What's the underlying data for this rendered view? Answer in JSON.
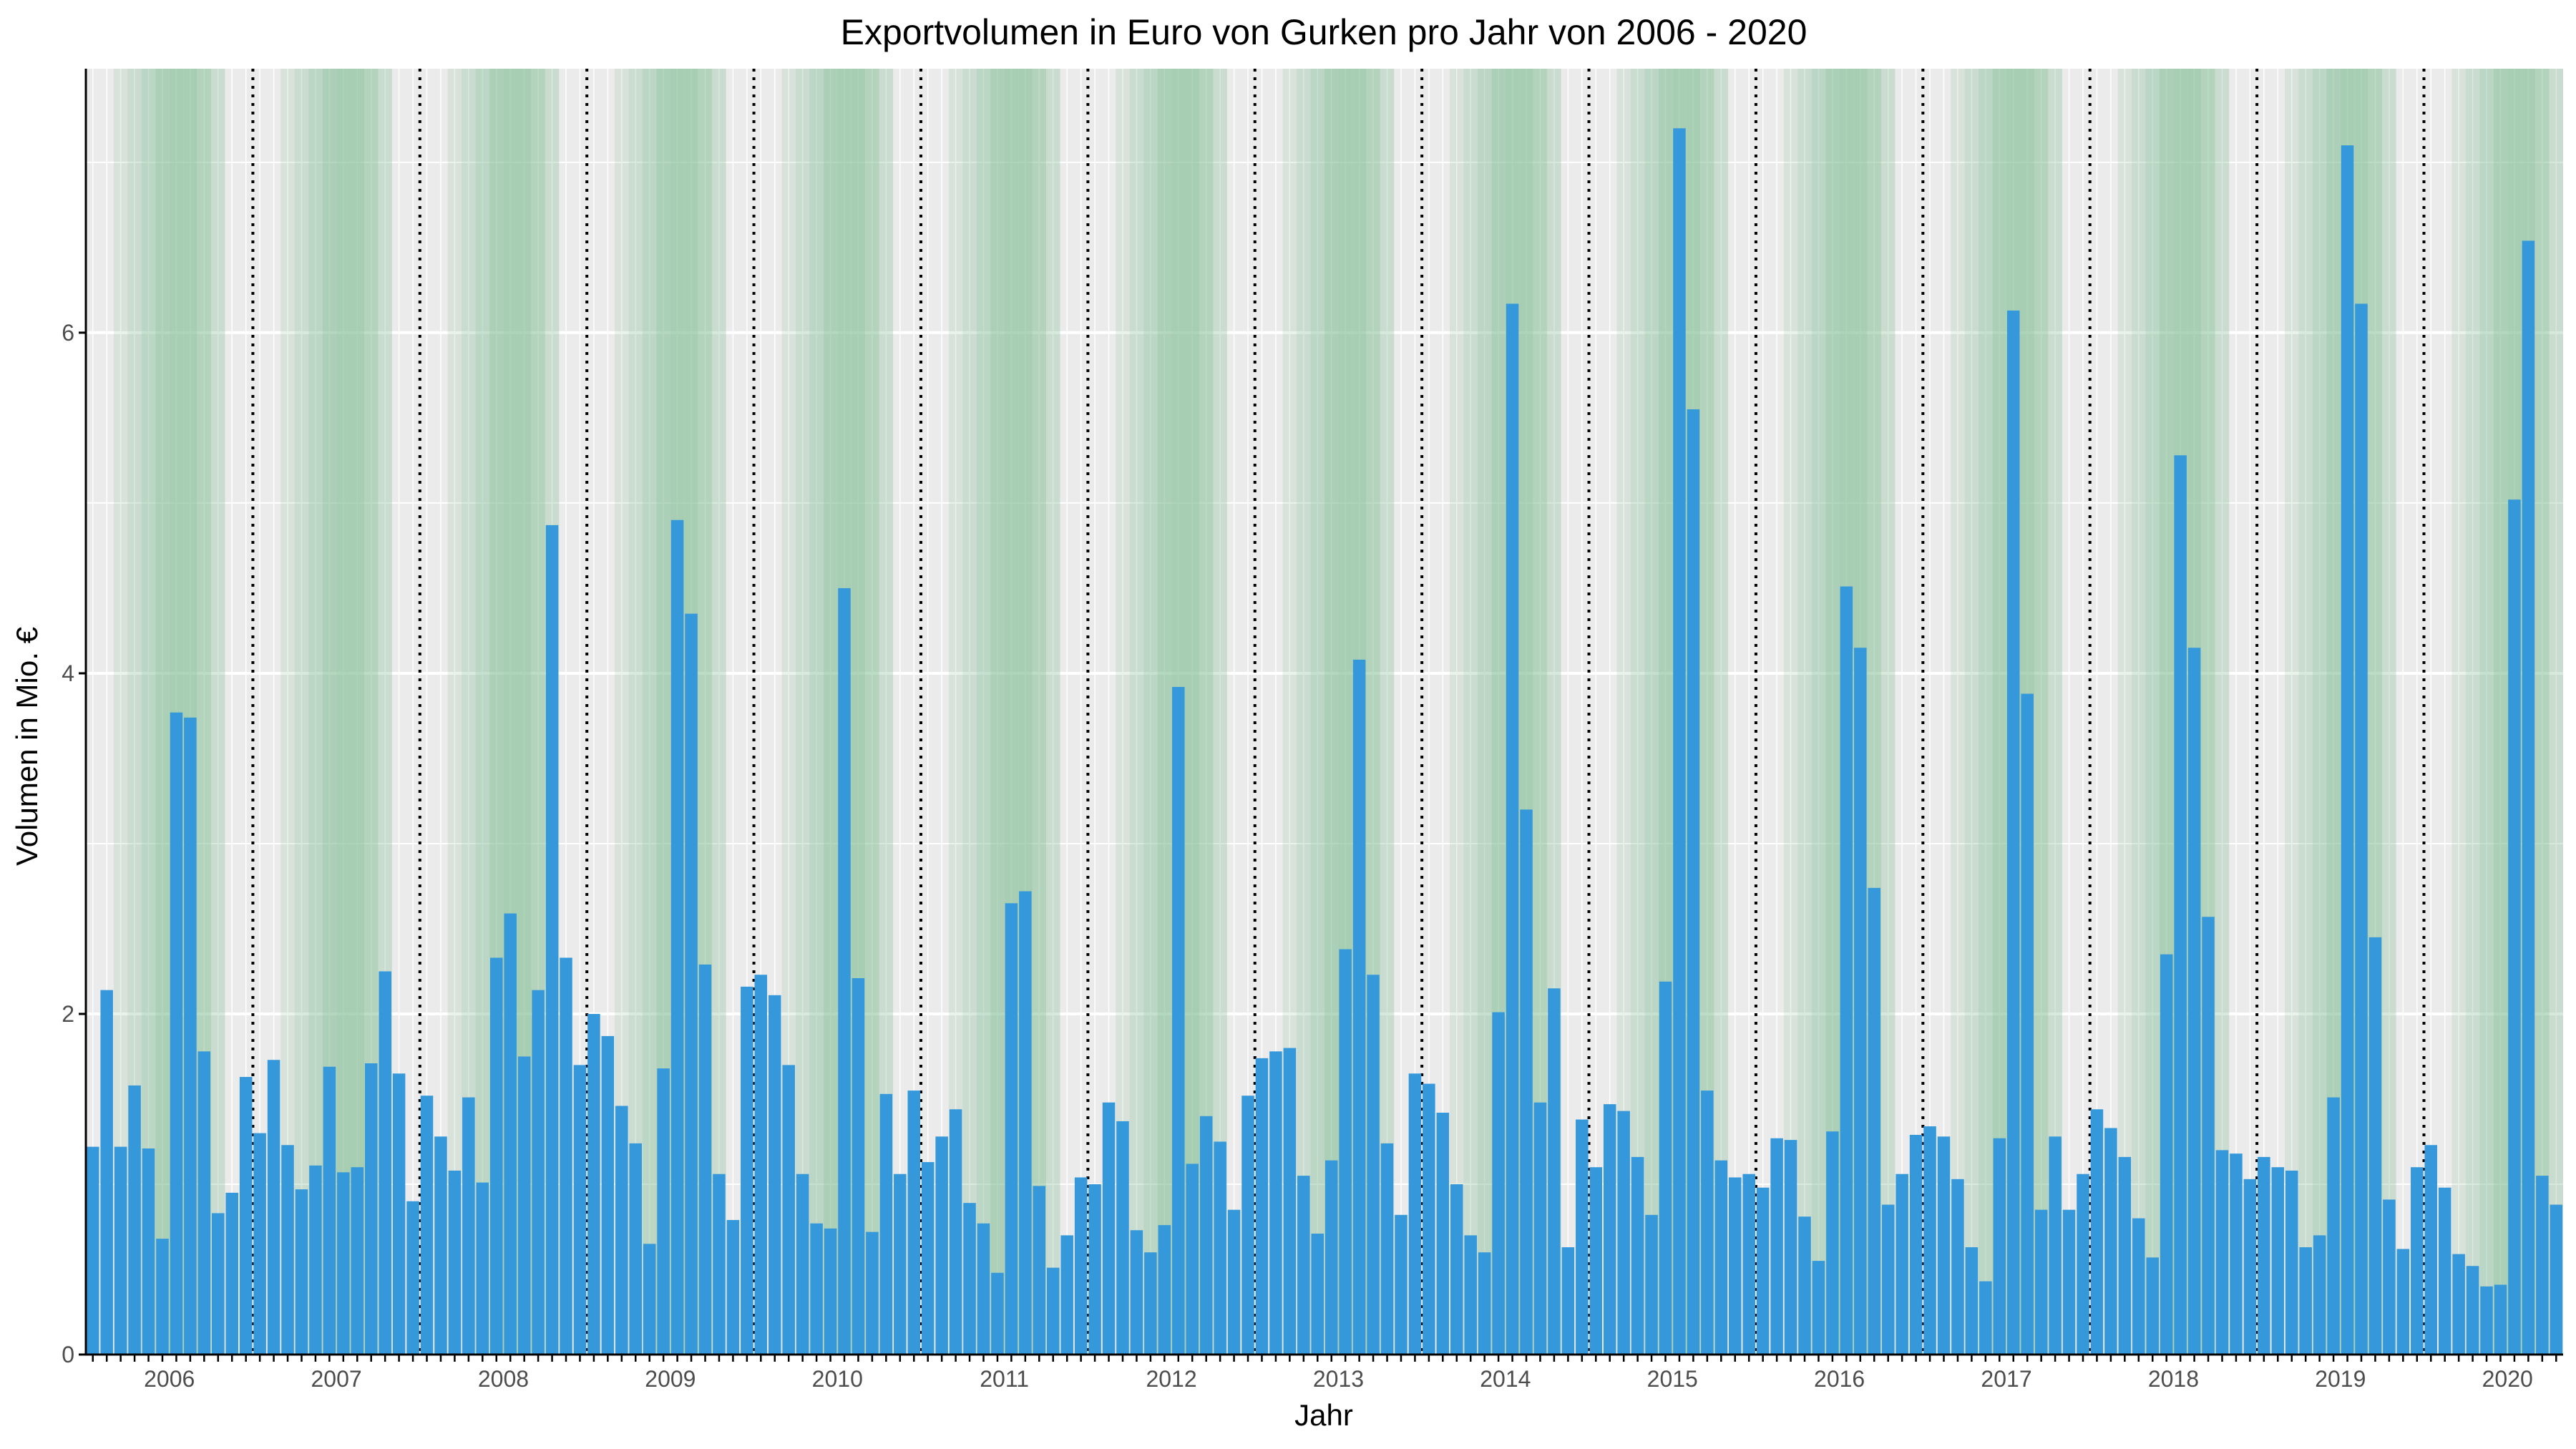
{
  "colors": {
    "bar": "#3498db",
    "season_band": "#86bf98",
    "panel_background": "#ebebeb",
    "grid_major": "#ffffff",
    "year_divider": "#000000",
    "axis_line": "#000000"
  },
  "chart_data": {
    "type": "bar",
    "title": "Exportvolumen in Euro von Gurken pro Jahr von 2006 - 2020",
    "xlabel": "Jahr",
    "ylabel": "Volumen in Mio. €",
    "ylim": [
      0,
      7.55
    ],
    "y_ticks": [
      "0",
      "2",
      "4",
      "6"
    ],
    "x_tick_labels": [
      "2006",
      "2007",
      "2008",
      "2009",
      "2010",
      "2011",
      "2012",
      "2013",
      "2014",
      "2015",
      "2016",
      "2017",
      "2018",
      "2019",
      "2020"
    ],
    "start": "2006-01",
    "frequency": "monthly",
    "grid": true,
    "legend": "none",
    "annotations": "dotted vertical line between December and January of each year; green shading over the months March to October",
    "series": [
      {
        "values": [
          1.22,
          2.14,
          1.22,
          1.58,
          1.21,
          0.68,
          3.77,
          3.74,
          1.78,
          0.83,
          0.95,
          1.63,
          1.3,
          1.73,
          1.23,
          0.97,
          1.11,
          1.69,
          1.07,
          1.1,
          1.71,
          2.25,
          1.65,
          0.9,
          1.52,
          1.28,
          1.08,
          1.51,
          1.01,
          2.33,
          2.59,
          1.75,
          2.14,
          4.87,
          2.33,
          1.7,
          2.0,
          1.87,
          1.46,
          1.24,
          0.65,
          1.68,
          4.9,
          4.35,
          2.29,
          1.06,
          0.79,
          2.16,
          2.23,
          2.11,
          1.7,
          1.06,
          0.77,
          0.74,
          4.5,
          2.21,
          0.72,
          1.53,
          1.06,
          1.55,
          1.13,
          1.28,
          1.44,
          0.89,
          0.77,
          0.48,
          2.65,
          2.72,
          0.99,
          0.51,
          0.7,
          1.04,
          1.0,
          1.48,
          1.37,
          0.73,
          0.6,
          0.76,
          3.92,
          1.12,
          1.4,
          1.25,
          0.85,
          1.52,
          1.74,
          1.78,
          1.8,
          1.05,
          0.71,
          1.14,
          2.38,
          4.08,
          2.23,
          1.24,
          0.82,
          1.65,
          1.59,
          1.42,
          1.0,
          0.7,
          0.6,
          2.01,
          6.17,
          3.2,
          1.48,
          2.15,
          0.63,
          1.38,
          1.1,
          1.47,
          1.43,
          1.16,
          0.82,
          2.19,
          7.2,
          5.55,
          1.55,
          1.14,
          1.04,
          1.06,
          0.98,
          1.27,
          1.26,
          0.81,
          0.55,
          1.31,
          4.51,
          4.15,
          2.74,
          0.88,
          1.06,
          1.29,
          1.34,
          1.28,
          1.03,
          0.63,
          0.43,
          1.27,
          6.13,
          3.88,
          0.85,
          1.28,
          0.85,
          1.06,
          1.44,
          1.33,
          1.16,
          0.8,
          0.57,
          2.35,
          5.28,
          4.15,
          2.57,
          1.2,
          1.18,
          1.03,
          1.16,
          1.1,
          1.08,
          0.63,
          0.7,
          1.51,
          7.1,
          6.17,
          2.45,
          0.91,
          0.62,
          1.1,
          1.23,
          0.98,
          0.59,
          0.52,
          0.4,
          0.41,
          5.02,
          6.54,
          1.05,
          0.88
        ]
      }
    ]
  }
}
